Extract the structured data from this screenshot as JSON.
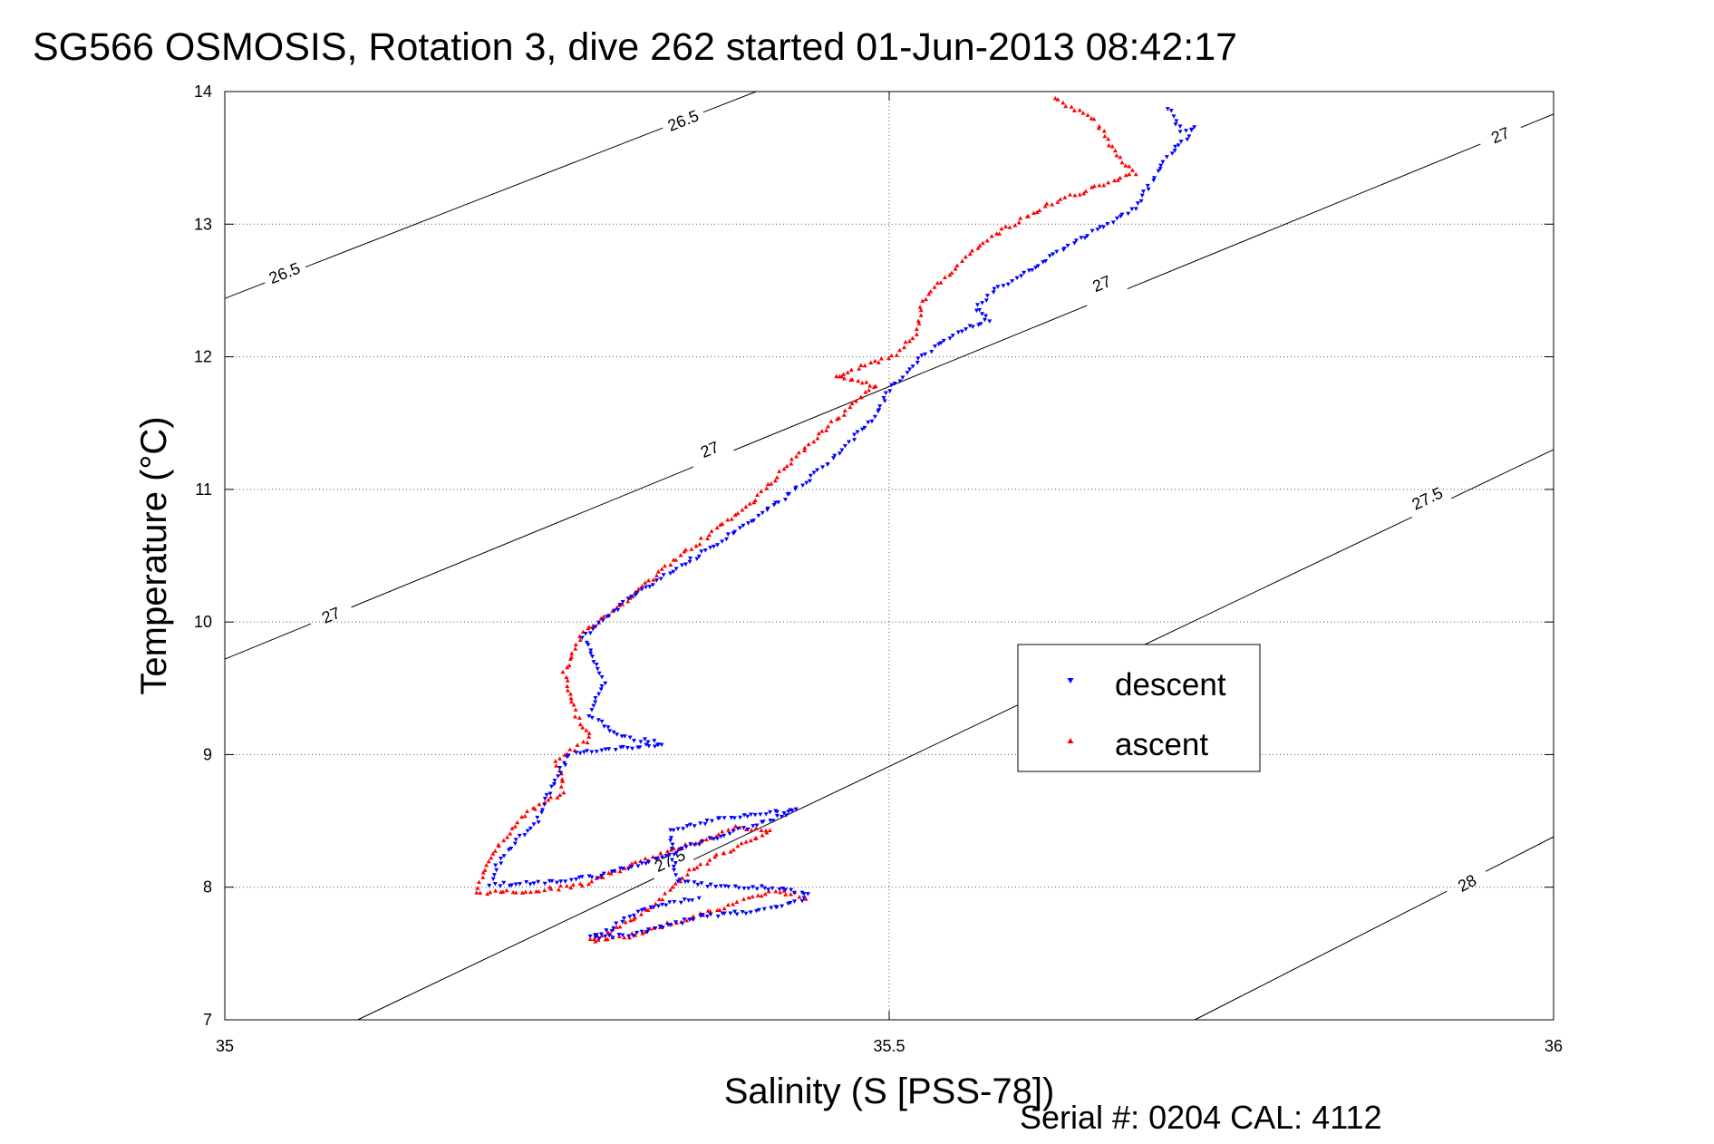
{
  "chart_data": {
    "type": "scatter",
    "title": "SG566 OSMOSIS, Rotation 3, dive 262 started 01-Jun-2013 08:42:17",
    "xlabel": "Salinity (S [PSS-78])",
    "ylabel": "Temperature (°C)",
    "xlim": [
      35,
      36
    ],
    "ylim": [
      7,
      14
    ],
    "x_ticks": [
      "35",
      "35.5",
      "36"
    ],
    "y_ticks": [
      "7",
      "8",
      "9",
      "10",
      "11",
      "12",
      "13",
      "14"
    ],
    "grid": true,
    "legend_position": "center-right",
    "footer": "Serial #: 0204  CAL: 4112",
    "density_contours": [
      {
        "label": "26.5",
        "points": [
          [
            35.0,
            12.44
          ],
          [
            35.4,
            14.0
          ]
        ],
        "labels_at": [
          [
            35.045,
            12.63
          ],
          [
            35.345,
            13.78
          ]
        ]
      },
      {
        "label": "27",
        "points": [
          [
            35.0,
            9.72
          ],
          [
            36.0,
            13.83
          ]
        ],
        "labels_at": [
          [
            35.08,
            10.05
          ],
          [
            35.365,
            11.3
          ],
          [
            35.66,
            12.55
          ],
          [
            35.96,
            13.67
          ]
        ]
      },
      {
        "label": "27.5",
        "points": [
          [
            35.1,
            7.0
          ],
          [
            36.0,
            11.3
          ]
        ],
        "labels_at": [
          [
            35.335,
            8.2
          ],
          [
            35.905,
            10.93
          ]
        ]
      },
      {
        "label": "28",
        "points": [
          [
            35.73,
            7.0
          ],
          [
            36.0,
            8.38
          ]
        ],
        "labels_at": [
          [
            35.935,
            8.03
          ]
        ]
      }
    ],
    "series": [
      {
        "name": "descent",
        "color": "#0000ff",
        "marker": "triangle-down",
        "path": [
          [
            35.71,
            13.88
          ],
          [
            35.72,
            13.7
          ],
          [
            35.73,
            13.72
          ],
          [
            35.705,
            13.45
          ],
          [
            35.685,
            13.12
          ],
          [
            35.65,
            12.92
          ],
          [
            35.61,
            12.68
          ],
          [
            35.58,
            12.5
          ],
          [
            35.565,
            12.36
          ],
          [
            35.575,
            12.28
          ],
          [
            35.56,
            12.22
          ],
          [
            35.545,
            12.15
          ],
          [
            35.52,
            11.96
          ],
          [
            35.5,
            11.75
          ],
          [
            35.49,
            11.55
          ],
          [
            35.455,
            11.2
          ],
          [
            35.41,
            10.85
          ],
          [
            35.36,
            10.52
          ],
          [
            35.3,
            10.15
          ],
          [
            35.27,
            9.88
          ],
          [
            35.285,
            9.55
          ],
          [
            35.275,
            9.3
          ],
          [
            35.295,
            9.14
          ],
          [
            35.33,
            9.08
          ],
          [
            35.26,
            9.0
          ],
          [
            35.245,
            8.75
          ],
          [
            35.235,
            8.5
          ],
          [
            35.215,
            8.3
          ],
          [
            35.205,
            8.16
          ],
          [
            35.2,
            8.02
          ],
          [
            35.24,
            8.03
          ],
          [
            35.28,
            8.08
          ],
          [
            35.32,
            8.2
          ],
          [
            35.37,
            8.38
          ],
          [
            35.41,
            8.5
          ],
          [
            35.43,
            8.58
          ],
          [
            35.38,
            8.53
          ],
          [
            35.335,
            8.42
          ],
          [
            35.34,
            8.05
          ],
          [
            35.36,
            8.02
          ],
          [
            35.39,
            8.0
          ],
          [
            35.42,
            7.99
          ],
          [
            35.44,
            7.94
          ],
          [
            35.43,
            7.88
          ],
          [
            35.4,
            7.82
          ],
          [
            35.36,
            7.78
          ],
          [
            35.33,
            7.7
          ],
          [
            35.3,
            7.63
          ],
          [
            35.275,
            7.62
          ],
          [
            35.29,
            7.68
          ],
          [
            35.31,
            7.82
          ],
          [
            35.335,
            7.88
          ],
          [
            35.36,
            7.92
          ]
        ]
      },
      {
        "name": "ascent",
        "color": "#ff0000",
        "marker": "triangle-up",
        "path": [
          [
            35.625,
            13.95
          ],
          [
            35.655,
            13.78
          ],
          [
            35.67,
            13.55
          ],
          [
            35.685,
            13.38
          ],
          [
            35.655,
            13.28
          ],
          [
            35.62,
            13.15
          ],
          [
            35.58,
            12.92
          ],
          [
            35.555,
            12.72
          ],
          [
            35.525,
            12.42
          ],
          [
            35.52,
            12.18
          ],
          [
            35.505,
            12.02
          ],
          [
            35.46,
            11.85
          ],
          [
            35.49,
            11.78
          ],
          [
            35.47,
            11.62
          ],
          [
            35.43,
            11.25
          ],
          [
            35.395,
            10.88
          ],
          [
            35.34,
            10.48
          ],
          [
            35.305,
            10.18
          ],
          [
            35.27,
            9.92
          ],
          [
            35.255,
            9.62
          ],
          [
            35.265,
            9.3
          ],
          [
            35.275,
            9.12
          ],
          [
            35.25,
            8.95
          ],
          [
            35.255,
            8.72
          ],
          [
            35.225,
            8.55
          ],
          [
            35.205,
            8.3
          ],
          [
            35.195,
            8.1
          ],
          [
            35.19,
            7.96
          ],
          [
            35.23,
            7.97
          ],
          [
            35.27,
            8.02
          ],
          [
            35.31,
            8.18
          ],
          [
            35.36,
            8.36
          ],
          [
            35.385,
            8.45
          ],
          [
            35.41,
            8.42
          ],
          [
            35.38,
            8.28
          ],
          [
            35.35,
            8.12
          ],
          [
            35.33,
            7.92
          ],
          [
            35.31,
            7.78
          ],
          [
            35.29,
            7.66
          ],
          [
            35.275,
            7.6
          ],
          [
            35.3,
            7.62
          ],
          [
            35.34,
            7.74
          ],
          [
            35.38,
            7.86
          ],
          [
            35.41,
            7.97
          ],
          [
            35.43,
            7.95
          ],
          [
            35.44,
            7.9
          ]
        ]
      }
    ]
  }
}
